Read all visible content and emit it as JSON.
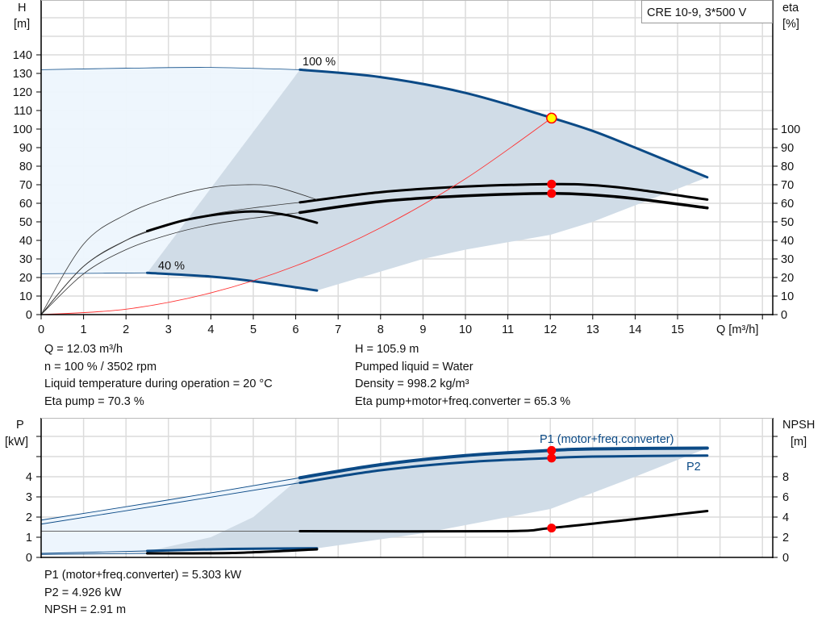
{
  "colors": {
    "curve_blue": "#0b4a86",
    "region_gray": "#d0dce7",
    "region_light": "#edf5fd",
    "duty_red": "#ff0000",
    "duty_yellow": "#ffff00",
    "grid": "#dcdcdc"
  },
  "chart_data": [
    {
      "type": "line",
      "title": "CRE 10-9, 3*500 V",
      "xlabel": "Q [m³/h]",
      "ylabel_left": "H",
      "ylabel_left_unit": "[m]",
      "ylabel_right": "eta",
      "ylabel_right_unit": "[%]",
      "xlim": [
        0,
        17
      ],
      "ylim_left": [
        0,
        170
      ],
      "ylim_right": [
        0,
        170
      ],
      "x_ticks": [
        "0",
        "1",
        "2",
        "3",
        "4",
        "5",
        "6",
        "7",
        "8",
        "9",
        "10",
        "11",
        "12",
        "13",
        "14",
        "15"
      ],
      "y_ticks_left": [
        "0",
        "10",
        "20",
        "30",
        "40",
        "50",
        "60",
        "70",
        "80",
        "90",
        "100",
        "110",
        "120",
        "130",
        "140"
      ],
      "y_ticks_right": [
        "0",
        "10",
        "20",
        "30",
        "40",
        "50",
        "60",
        "70",
        "80",
        "90",
        "100"
      ],
      "grid": true,
      "curve_labels": {
        "max_speed": "100 %",
        "min_speed": "40 %"
      },
      "series": [
        {
          "id": "head_100",
          "axis": "H",
          "thin": [
            [
              0,
              132
            ],
            [
              2,
              132.8
            ],
            [
              4,
              133.2
            ],
            [
              6.1,
              132
            ]
          ],
          "thick": [
            [
              6.1,
              132
            ],
            [
              8,
              128
            ],
            [
              10,
              119.5
            ],
            [
              12,
              106.3
            ],
            [
              13,
              99
            ],
            [
              14,
              90
            ],
            [
              15.7,
              74
            ]
          ]
        },
        {
          "id": "head_40",
          "axis": "H",
          "thin": [
            [
              0,
              22
            ],
            [
              1.5,
              22.3
            ],
            [
              2.5,
              22.5
            ]
          ],
          "thick": [
            [
              2.5,
              22.5
            ],
            [
              4,
              20.5
            ],
            [
              5,
              18
            ],
            [
              6.5,
              13
            ]
          ]
        },
        {
          "id": "eta_pump",
          "axis": "eta",
          "thin": [
            [
              0,
              0
            ],
            [
              1,
              26
            ],
            [
              2,
              40
            ],
            [
              3,
              48
            ],
            [
              4,
              54
            ],
            [
              5,
              57.5
            ],
            [
              6.1,
              60.5
            ]
          ],
          "thick": [
            [
              6.1,
              60.5
            ],
            [
              8,
              66
            ],
            [
              10,
              69
            ],
            [
              12,
              70.3
            ],
            [
              13,
              69.8
            ],
            [
              14,
              67.5
            ],
            [
              15.7,
              62
            ]
          ]
        },
        {
          "id": "eta_total",
          "axis": "eta",
          "thin": [
            [
              0,
              0
            ],
            [
              1,
              22
            ],
            [
              2,
              35
            ],
            [
              3,
              43
            ],
            [
              4,
              48.5
            ],
            [
              5,
              52
            ],
            [
              6.1,
              55
            ]
          ],
          "thick": [
            [
              6.1,
              55
            ],
            [
              8,
              61
            ],
            [
              10,
              64
            ],
            [
              12,
              65.3
            ],
            [
              13,
              64.5
            ],
            [
              14,
              62.5
            ],
            [
              15.7,
              57.5
            ]
          ]
        },
        {
          "id": "eta_pump_40",
          "axis": "eta",
          "thin": [
            [
              0,
              0
            ],
            [
              1,
              38
            ],
            [
              2,
              54
            ],
            [
              3,
              63
            ],
            [
              4,
              68.5
            ],
            [
              4.8,
              70
            ],
            [
              5.5,
              69
            ],
            [
              6.5,
              62
            ]
          ],
          "thick": []
        },
        {
          "id": "eta_total_40",
          "axis": "eta",
          "thin": [
            [
              0,
              0
            ],
            [
              1,
              26
            ],
            [
              2,
              40
            ],
            [
              2.5,
              45
            ]
          ],
          "thick": [
            [
              2.5,
              45
            ],
            [
              3.5,
              51.5
            ],
            [
              4.8,
              55.5
            ],
            [
              5.7,
              54
            ],
            [
              6.5,
              49.5
            ]
          ]
        },
        {
          "id": "system_curve",
          "axis": "H",
          "points": [
            [
              0,
              0
            ],
            [
              2,
              2.9
            ],
            [
              4,
              11.7
            ],
            [
              6,
              26.3
            ],
            [
              8,
              46.8
            ],
            [
              10,
              73.2
            ],
            [
              12.03,
              105.9
            ]
          ]
        }
      ],
      "duty_point": {
        "Q": 12.03,
        "H": 105.9,
        "eta_pump": 70.3,
        "eta_total": 65.3
      },
      "region_light": [
        [
          0,
          132
        ],
        [
          2,
          132.8
        ],
        [
          4,
          133.2
        ],
        [
          6.1,
          132
        ],
        [
          2.5,
          22.5
        ],
        [
          0,
          22
        ]
      ],
      "region_gray": [
        [
          2.5,
          22.5
        ],
        [
          6.1,
          132
        ],
        [
          8,
          128
        ],
        [
          10,
          119.5
        ],
        [
          12,
          106.3
        ],
        [
          13,
          99
        ],
        [
          14,
          90
        ],
        [
          15.7,
          74
        ],
        [
          13,
          50
        ],
        [
          12,
          43
        ],
        [
          10,
          35
        ],
        [
          9,
          30
        ],
        [
          6.5,
          13
        ],
        [
          5,
          18
        ],
        [
          4,
          20.5
        ]
      ]
    },
    {
      "type": "line",
      "ylabel_left": "P",
      "ylabel_left_unit": "[kW]",
      "ylabel_right": "NPSH",
      "ylabel_right_unit": "[m]",
      "xlim": [
        0,
        17
      ],
      "ylim_left": [
        0,
        6.9
      ],
      "ylim_right": [
        0,
        13.8
      ],
      "y_ticks_left": [
        "0",
        "1",
        "2",
        "3",
        "4"
      ],
      "y_ticks_right": [
        "0",
        "2",
        "4",
        "6",
        "8"
      ],
      "grid": true,
      "curve_labels": {
        "p1": "P1 (motor+freq.converter)",
        "p2": "P2"
      },
      "series": [
        {
          "id": "p1",
          "axis": "P",
          "thin": [
            [
              0,
              1.85
            ],
            [
              3,
              2.85
            ],
            [
              6.1,
              3.95
            ]
          ],
          "thick": [
            [
              6.1,
              3.95
            ],
            [
              8,
              4.6
            ],
            [
              10,
              5.05
            ],
            [
              12,
              5.303
            ],
            [
              13,
              5.38
            ],
            [
              15.7,
              5.42
            ]
          ]
        },
        {
          "id": "p2",
          "axis": "P",
          "thin": [
            [
              0,
              1.65
            ],
            [
              3,
              2.65
            ],
            [
              6.1,
              3.7
            ]
          ],
          "thick": [
            [
              6.1,
              3.7
            ],
            [
              8,
              4.32
            ],
            [
              10,
              4.72
            ],
            [
              12,
              4.926
            ],
            [
              13,
              5.0
            ],
            [
              15.7,
              5.05
            ]
          ]
        },
        {
          "id": "npsh",
          "axis": "NPSH",
          "thin": [
            [
              0,
              2.6
            ],
            [
              6.1,
              2.6
            ]
          ],
          "thick": [
            [
              6.1,
              2.6
            ],
            [
              10.9,
              2.6
            ],
            [
              12,
              2.91
            ],
            [
              14,
              3.8
            ],
            [
              15.7,
              4.6
            ]
          ]
        },
        {
          "id": "p1_40",
          "axis": "P",
          "thin": [
            [
              0,
              0.2
            ],
            [
              2.5,
              0.32
            ]
          ],
          "thick": [
            [
              2.5,
              0.32
            ],
            [
              4.5,
              0.42
            ],
            [
              6.5,
              0.45
            ]
          ]
        },
        {
          "id": "p2_40",
          "axis": "P",
          "thin": [
            [
              0,
              0.15
            ],
            [
              2.5,
              0.2
            ]
          ],
          "thick": [
            [
              2.5,
              0.2
            ],
            [
              4.5,
              0.22
            ],
            [
              6.5,
              0.4
            ]
          ]
        }
      ],
      "duty_point": {
        "P1": 5.303,
        "P2": 4.926,
        "NPSH": 2.91
      },
      "region_light": [
        [
          0,
          1.85
        ],
        [
          3,
          2.85
        ],
        [
          6.1,
          3.95
        ],
        [
          4.5,
          0.4
        ],
        [
          0,
          0.15
        ]
      ],
      "region_gray": [
        [
          2.5,
          0.3
        ],
        [
          4,
          1.0
        ],
        [
          5,
          2.0
        ],
        [
          6.1,
          3.95
        ],
        [
          8,
          4.6
        ],
        [
          10,
          5.05
        ],
        [
          12,
          5.303
        ],
        [
          13,
          5.38
        ],
        [
          15.7,
          5.42
        ],
        [
          14,
          4.0
        ],
        [
          12,
          2.4
        ],
        [
          10,
          1.6
        ],
        [
          9,
          1.2
        ],
        [
          6.5,
          0.45
        ]
      ]
    }
  ],
  "info_top": {
    "q": "Q = 12.03 m³/h",
    "n": "n = 100 % / 3502 rpm",
    "temp": "Liquid temperature during operation = 20 °C",
    "eta_pump": "Eta pump = 70.3 %",
    "h": "H = 105.9 m",
    "liquid": "Pumped liquid = Water",
    "density": "Density = 998.2 kg/m³",
    "eta_total": "Eta pump+motor+freq.converter = 65.3 %"
  },
  "info_bottom": {
    "p1": "P1 (motor+freq.converter) = 5.303 kW",
    "p2": "P2 = 4.926 kW",
    "npsh": "NPSH = 2.91 m"
  }
}
